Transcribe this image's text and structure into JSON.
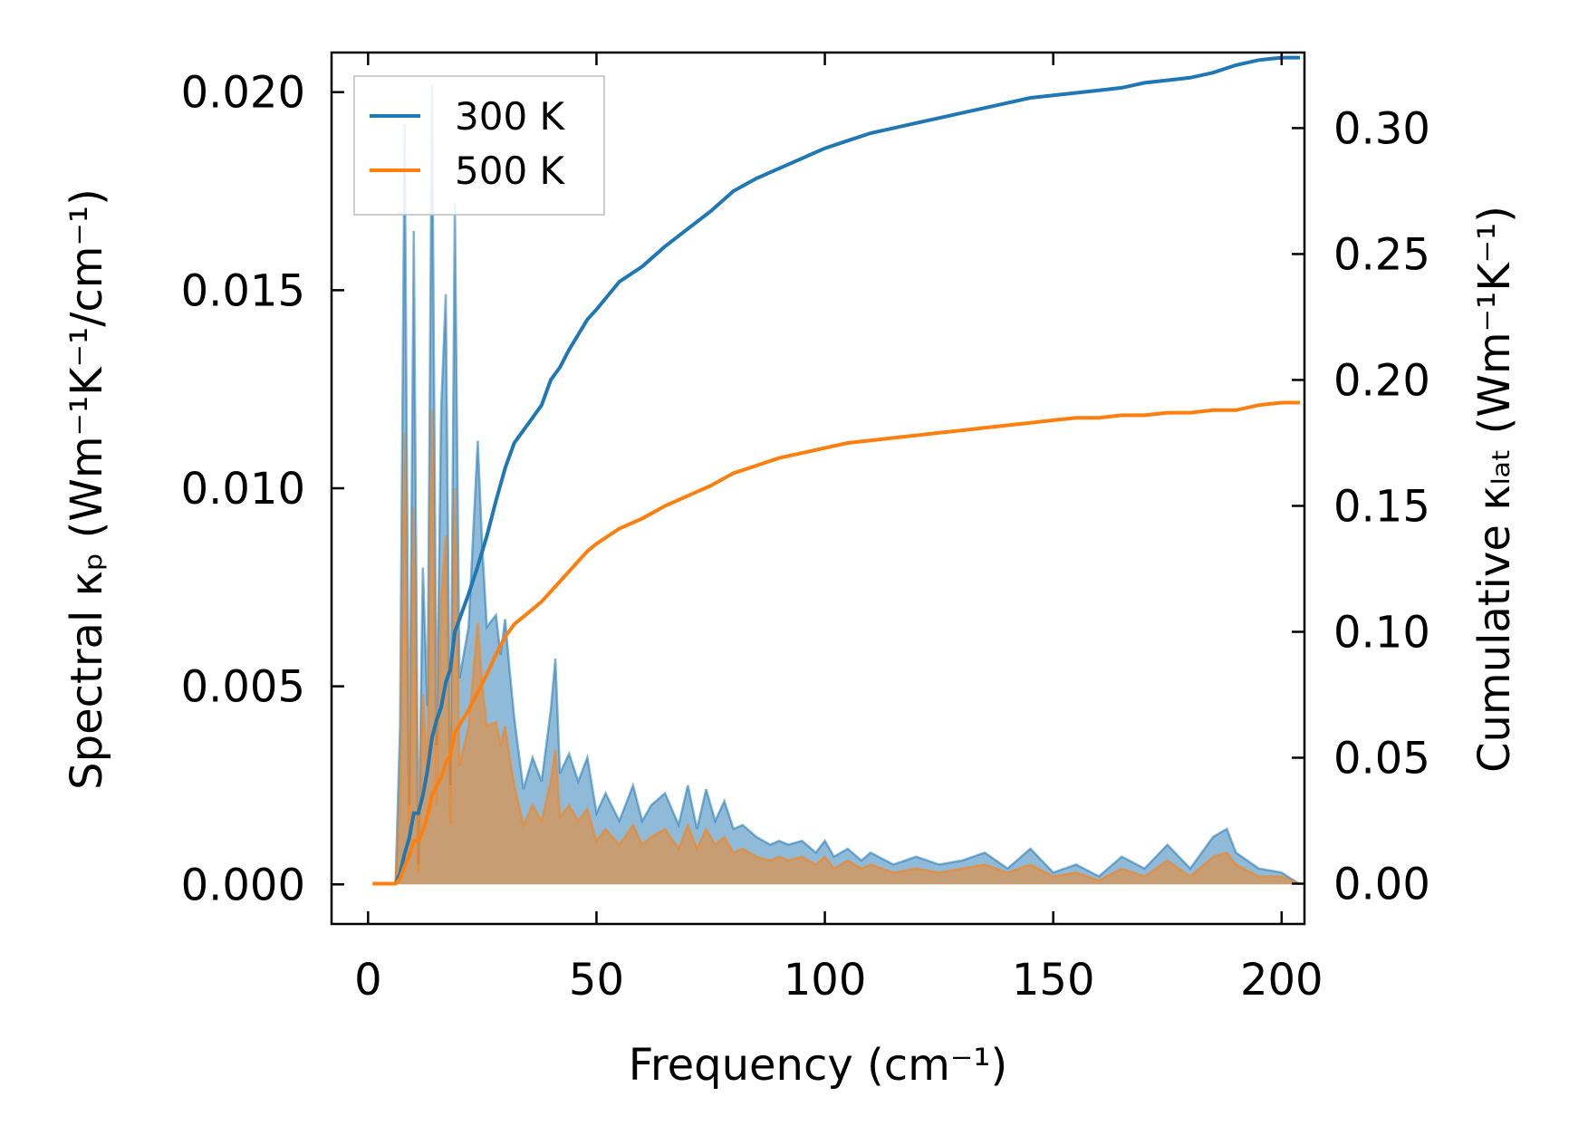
{
  "chart_data": {
    "type": "line",
    "title": "",
    "xlabel": "Frequency (cm⁻¹)",
    "ylabel_left": "Spectral κₚ (Wm⁻¹K⁻¹/cm⁻¹)",
    "ylabel_right": "Cumulative κₗₐₜ (Wm⁻¹K⁻¹)",
    "xlim": [
      -8,
      205
    ],
    "ylim_left": [
      -0.001,
      0.021
    ],
    "ylim_right": [
      -0.016,
      0.33
    ],
    "x_ticks": [
      "0",
      "50",
      "100",
      "150",
      "200"
    ],
    "y_left_ticks": [
      "0.000",
      "0.005",
      "0.010",
      "0.015",
      "0.020"
    ],
    "y_right_ticks": [
      "0.00",
      "0.05",
      "0.10",
      "0.15",
      "0.20",
      "0.25",
      "0.30"
    ],
    "legend_position": "upper-left",
    "series": [
      {
        "name": "300 K",
        "color": "#1f77b4",
        "spectral": {
          "x": [
            1,
            6,
            7,
            8,
            9,
            10,
            11,
            12,
            13,
            14,
            15,
            16,
            17,
            18,
            19,
            20,
            22,
            24,
            25,
            26,
            28,
            29,
            30,
            31,
            32,
            34,
            36,
            38,
            40,
            41,
            42,
            44,
            46,
            48,
            50,
            52,
            55,
            58,
            60,
            62,
            65,
            68,
            70,
            72,
            74,
            76,
            78,
            80,
            82,
            85,
            88,
            90,
            92,
            95,
            98,
            100,
            102,
            105,
            108,
            110,
            115,
            120,
            125,
            130,
            135,
            140,
            145,
            150,
            155,
            160,
            165,
            170,
            175,
            180,
            185,
            188,
            190,
            195,
            200,
            204
          ],
          "y": [
            0,
            0,
            0.004,
            0.0192,
            0.002,
            0.0165,
            0.0005,
            0.008,
            0.0045,
            0.0202,
            0.0035,
            0.012,
            0.0149,
            0.0025,
            0.0172,
            0.0052,
            0.0065,
            0.0112,
            0.0085,
            0.0065,
            0.0068,
            0.0058,
            0.0067,
            0.0054,
            0.0042,
            0.0024,
            0.0032,
            0.0026,
            0.0044,
            0.0057,
            0.0028,
            0.0033,
            0.0026,
            0.0032,
            0.0018,
            0.0023,
            0.0016,
            0.0025,
            0.0016,
            0.002,
            0.0023,
            0.0015,
            0.0025,
            0.0014,
            0.0024,
            0.0016,
            0.0021,
            0.0014,
            0.0015,
            0.0012,
            0.001,
            0.0011,
            0.001,
            0.0011,
            0.0008,
            0.0011,
            0.0007,
            0.0009,
            0.0006,
            0.0008,
            0.0005,
            0.0007,
            0.0005,
            0.0006,
            0.0008,
            0.0004,
            0.0009,
            0.0003,
            0.0005,
            0.0002,
            0.0007,
            0.0004,
            0.001,
            0.0004,
            0.0012,
            0.0014,
            0.0008,
            0.0004,
            0.0003,
            0
          ]
        },
        "cumulative": {
          "x": [
            1,
            6,
            7,
            8,
            9,
            10,
            11,
            12,
            13,
            14,
            15,
            16,
            17,
            18,
            19,
            20,
            22,
            24,
            26,
            28,
            30,
            32,
            34,
            36,
            38,
            40,
            42,
            44,
            46,
            48,
            50,
            55,
            60,
            65,
            70,
            75,
            80,
            85,
            90,
            95,
            100,
            105,
            110,
            115,
            120,
            125,
            130,
            135,
            140,
            145,
            150,
            155,
            160,
            165,
            170,
            175,
            180,
            185,
            190,
            195,
            200,
            204
          ],
          "y": [
            0,
            0,
            0.004,
            0.012,
            0.018,
            0.028,
            0.028,
            0.035,
            0.045,
            0.058,
            0.065,
            0.07,
            0.08,
            0.085,
            0.1,
            0.105,
            0.115,
            0.126,
            0.138,
            0.152,
            0.165,
            0.175,
            0.18,
            0.185,
            0.19,
            0.2,
            0.205,
            0.212,
            0.218,
            0.224,
            0.228,
            0.239,
            0.245,
            0.253,
            0.26,
            0.267,
            0.275,
            0.28,
            0.284,
            0.288,
            0.292,
            0.295,
            0.298,
            0.3,
            0.302,
            0.304,
            0.306,
            0.308,
            0.31,
            0.312,
            0.313,
            0.314,
            0.315,
            0.316,
            0.318,
            0.319,
            0.32,
            0.322,
            0.325,
            0.327,
            0.328,
            0.328
          ]
        }
      },
      {
        "name": "500 K",
        "color": "#ff7f0e",
        "spectral": {
          "x": [
            1,
            6,
            7,
            8,
            9,
            10,
            11,
            12,
            13,
            14,
            15,
            16,
            17,
            18,
            19,
            20,
            22,
            24,
            25,
            26,
            28,
            29,
            30,
            31,
            32,
            34,
            36,
            38,
            40,
            41,
            42,
            44,
            46,
            48,
            50,
            52,
            55,
            58,
            60,
            62,
            65,
            68,
            70,
            72,
            74,
            76,
            78,
            80,
            82,
            85,
            88,
            90,
            92,
            95,
            98,
            100,
            102,
            105,
            108,
            110,
            115,
            120,
            125,
            130,
            135,
            140,
            145,
            150,
            155,
            160,
            165,
            170,
            175,
            180,
            185,
            188,
            190,
            195,
            200,
            204
          ],
          "y": [
            0,
            0,
            0.002,
            0.0114,
            0.001,
            0.0095,
            0.0003,
            0.0048,
            0.0028,
            0.012,
            0.002,
            0.0072,
            0.0088,
            0.0015,
            0.01,
            0.003,
            0.004,
            0.0066,
            0.005,
            0.004,
            0.0041,
            0.0035,
            0.004,
            0.0032,
            0.0025,
            0.0015,
            0.002,
            0.0016,
            0.0026,
            0.0034,
            0.0017,
            0.002,
            0.0016,
            0.0019,
            0.0011,
            0.0014,
            0.001,
            0.0015,
            0.001,
            0.0012,
            0.0014,
            0.0009,
            0.0015,
            0.0009,
            0.0014,
            0.001,
            0.0012,
            0.0008,
            0.0009,
            0.0007,
            0.0006,
            0.0007,
            0.0006,
            0.0007,
            0.0005,
            0.0007,
            0.0004,
            0.0006,
            0.0004,
            0.0005,
            0.0003,
            0.0004,
            0.0003,
            0.0004,
            0.0005,
            0.0003,
            0.0005,
            0.0002,
            0.0003,
            0.0001,
            0.0004,
            0.0002,
            0.0006,
            0.0002,
            0.0007,
            0.0008,
            0.0005,
            0.0002,
            0.0002,
            0
          ]
        },
        "cumulative": {
          "x": [
            1,
            6,
            7,
            8,
            9,
            10,
            11,
            12,
            13,
            14,
            15,
            16,
            17,
            18,
            19,
            20,
            22,
            24,
            26,
            28,
            30,
            32,
            34,
            36,
            38,
            40,
            42,
            44,
            46,
            48,
            50,
            55,
            60,
            65,
            70,
            75,
            80,
            85,
            90,
            95,
            100,
            105,
            110,
            115,
            120,
            125,
            130,
            135,
            140,
            145,
            150,
            155,
            160,
            165,
            170,
            175,
            180,
            185,
            190,
            195,
            200,
            204
          ],
          "y": [
            0,
            0,
            0.002,
            0.007,
            0.011,
            0.017,
            0.017,
            0.021,
            0.027,
            0.035,
            0.039,
            0.042,
            0.048,
            0.051,
            0.06,
            0.063,
            0.069,
            0.076,
            0.083,
            0.091,
            0.098,
            0.103,
            0.106,
            0.109,
            0.112,
            0.116,
            0.12,
            0.124,
            0.128,
            0.132,
            0.135,
            0.141,
            0.145,
            0.15,
            0.154,
            0.158,
            0.163,
            0.166,
            0.169,
            0.171,
            0.173,
            0.175,
            0.176,
            0.177,
            0.178,
            0.179,
            0.18,
            0.181,
            0.182,
            0.183,
            0.184,
            0.185,
            0.185,
            0.186,
            0.186,
            0.187,
            0.187,
            0.188,
            0.188,
            0.19,
            0.191,
            0.191
          ]
        }
      }
    ]
  }
}
